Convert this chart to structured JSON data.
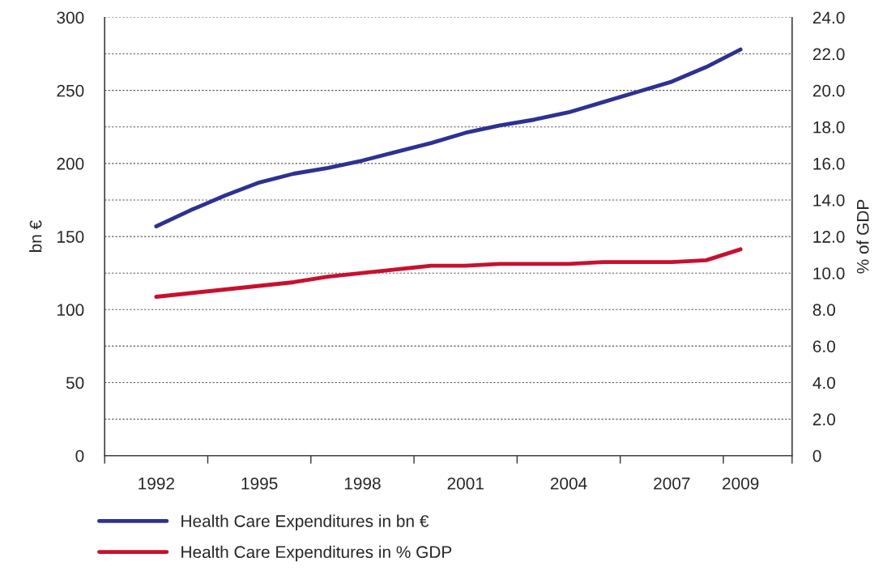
{
  "chart_data": {
    "type": "line",
    "ylabel": "bn €",
    "y2label": "% of GDP",
    "x": [
      1992,
      1993,
      1994,
      1995,
      1996,
      1997,
      1998,
      1999,
      2000,
      2001,
      2002,
      2003,
      2004,
      2005,
      2006,
      2007,
      2008,
      2009
    ],
    "series": [
      {
        "name": "Health Care Expenditures in bn €",
        "color": "#2e3192",
        "values": [
          157,
          168,
          178,
          187,
          193,
          197,
          202,
          208,
          214,
          221,
          226,
          230,
          235,
          242,
          249,
          256,
          266,
          278
        ]
      },
      {
        "name": "Health Care Expenditures in % GDP",
        "color": "#c8102e",
        "axis": "y2",
        "values": [
          8.7,
          8.9,
          9.1,
          9.3,
          9.5,
          9.8,
          10.0,
          10.2,
          10.4,
          10.4,
          10.5,
          10.5,
          10.5,
          10.6,
          10.6,
          10.6,
          10.7,
          11.3
        ]
      }
    ],
    "xlim": [
      1990.5,
      2010.5
    ],
    "xticks": [
      {
        "value": 1990.5,
        "label": null
      },
      {
        "value": 1992,
        "label": "1992"
      },
      {
        "value": 1993.5,
        "label": null
      },
      {
        "value": 1995,
        "label": "1995"
      },
      {
        "value": 1996.5,
        "label": null
      },
      {
        "value": 1998,
        "label": "1998"
      },
      {
        "value": 1999.5,
        "label": null
      },
      {
        "value": 2001,
        "label": "2001"
      },
      {
        "value": 2002.5,
        "label": null
      },
      {
        "value": 2004,
        "label": "2004"
      },
      {
        "value": 2005.5,
        "label": null
      },
      {
        "value": 2007,
        "label": "2007"
      },
      {
        "value": 2008.5,
        "label": null
      },
      {
        "value": 2009,
        "label": "2009"
      },
      {
        "value": 2010.5,
        "label": null
      }
    ],
    "ylim": [
      0,
      300
    ],
    "yticks": [
      0,
      {
        "value": 25,
        "label": null
      },
      50,
      {
        "value": 75,
        "label": null
      },
      100,
      {
        "value": 125,
        "label": null
      },
      150,
      {
        "value": 175,
        "label": null
      },
      200,
      {
        "value": 225,
        "label": null
      },
      250,
      {
        "value": 275,
        "label": null
      },
      300
    ],
    "y2lim": [
      0,
      24
    ],
    "y2ticks": [
      {
        "value": 0,
        "label": "0"
      },
      {
        "value": 2,
        "label": "2.0"
      },
      {
        "value": 4,
        "label": "4.0"
      },
      {
        "value": 6,
        "label": "6.0"
      },
      {
        "value": 8,
        "label": "8.0"
      },
      {
        "value": 10,
        "label": "10.0"
      },
      {
        "value": 12,
        "label": "12.0"
      },
      {
        "value": 14,
        "label": "14.0"
      },
      {
        "value": 16,
        "label": "16.0"
      },
      {
        "value": 18,
        "label": "18.0"
      },
      {
        "value": 20,
        "label": "20.0"
      },
      {
        "value": 22,
        "label": "22.0"
      },
      {
        "value": 24,
        "label": "24.0"
      }
    ],
    "grid": "y",
    "legend": "bottom",
    "marker": "none",
    "line_style": "solid"
  }
}
